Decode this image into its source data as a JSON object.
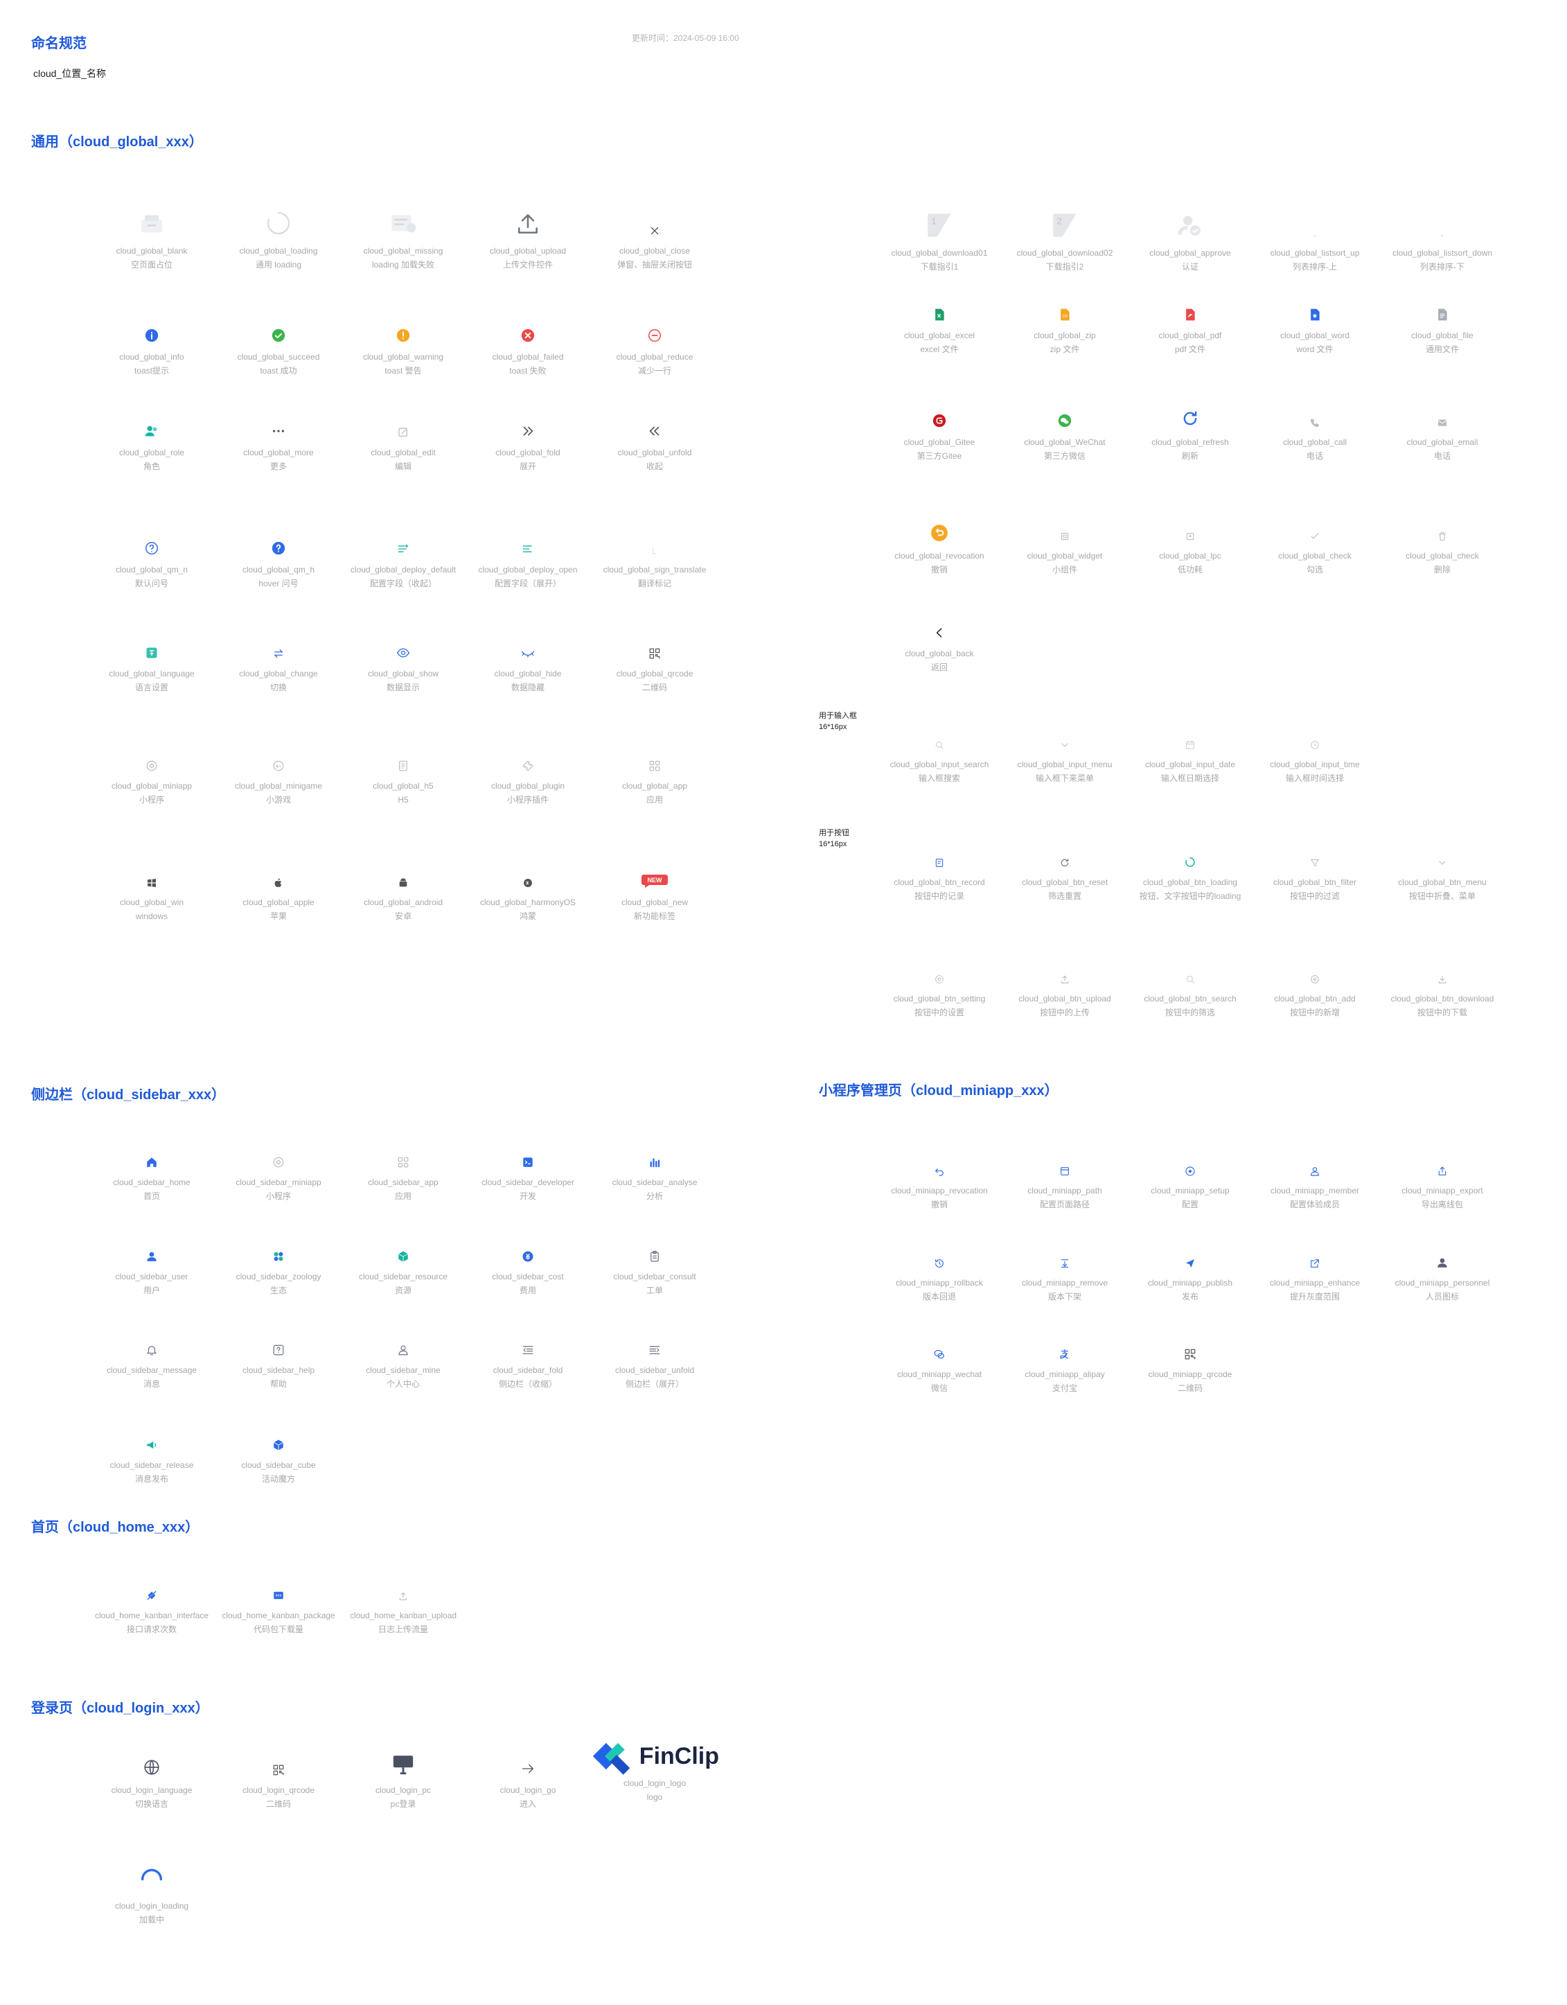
{
  "header": {
    "title": "命名规范",
    "rule": "cloud_位置_名称",
    "updated": "更新时间：2024-05-09 16:00"
  },
  "sections": {
    "global": "通用（cloud_global_xxx）",
    "sidebar": "侧边栏（cloud_sidebar_xxx）",
    "home": "首页（cloud_home_xxx）",
    "login": "登录页（cloud_login_xxx）",
    "miniapp": "小程序管理页（cloud_miniapp_xxx）"
  },
  "notes": {
    "input": [
      "用于输入框",
      "16*16px"
    ],
    "button": [
      "用于按钮",
      "16*16px"
    ]
  },
  "colors": {
    "title": "#1f5ad9",
    "blue": "#2f6be6",
    "green": "#3bb44a",
    "orange": "#f5a623",
    "red": "#e9494a",
    "teal": "#13b5a0",
    "gray": "#b8b8b8",
    "dark": "#6b7380"
  },
  "global_left": [
    {
      "name": "cloud_global_blank",
      "desc": "空页面占位",
      "icon": "blank-icon"
    },
    {
      "name": "cloud_global_loading",
      "desc": "通用 loading",
      "icon": "loading-icon"
    },
    {
      "name": "cloud_global_missing",
      "desc": "loading 加载失败",
      "icon": "missing-icon"
    },
    {
      "name": "cloud_global_upload",
      "desc": "上传文件控件",
      "icon": "upload-icon"
    },
    {
      "name": "cloud_global_close",
      "desc": "弹窗、抽屉关闭按钮",
      "icon": "close-icon"
    },
    {
      "name": "cloud_global_info",
      "desc": "toast提示",
      "icon": "info-icon"
    },
    {
      "name": "cloud_global_succeed",
      "desc": "toast 成功",
      "icon": "success-icon"
    },
    {
      "name": "cloud_global_warning",
      "desc": "toast 警告",
      "icon": "warning-icon"
    },
    {
      "name": "cloud_global_failed",
      "desc": "toast 失败",
      "icon": "failed-icon"
    },
    {
      "name": "cloud_global_reduce",
      "desc": "减少一行",
      "icon": "reduce-icon"
    },
    {
      "name": "cloud_global_role",
      "desc": "角色",
      "icon": "role-icon"
    },
    {
      "name": "cloud_global_more",
      "desc": "更多",
      "icon": "more-icon"
    },
    {
      "name": "cloud_global_edit",
      "desc": "编辑",
      "icon": "edit-icon"
    },
    {
      "name": "cloud_global_fold",
      "desc": "展开",
      "icon": "chevrons-right-icon"
    },
    {
      "name": "cloud_global_unfold",
      "desc": "收起",
      "icon": "chevrons-left-icon"
    },
    {
      "name": "cloud_global_qm_n",
      "desc": "默认问号",
      "icon": "question-outline-icon"
    },
    {
      "name": "cloud_global_qm_h",
      "desc": "hover 问号",
      "icon": "question-filled-icon"
    },
    {
      "name": "cloud_global_deploy_default",
      "desc": "配置字段（收起）",
      "icon": "deploy-default-icon"
    },
    {
      "name": "cloud_global_deploy_open",
      "desc": "配置字段（展开）",
      "icon": "deploy-open-icon"
    },
    {
      "name": "cloud_global_sign_translate",
      "desc": "翻译标记",
      "icon": "translate-sign-icon"
    },
    {
      "name": "cloud_global_language",
      "desc": "语言设置",
      "icon": "language-icon"
    },
    {
      "name": "cloud_global_change",
      "desc": "切换",
      "icon": "change-icon"
    },
    {
      "name": "cloud_global_show",
      "desc": "数据显示",
      "icon": "eye-icon"
    },
    {
      "name": "cloud_global_hide",
      "desc": "数据隐藏",
      "icon": "eye-closed-icon"
    },
    {
      "name": "cloud_global_qrcode",
      "desc": "二维码",
      "icon": "qrcode-icon"
    },
    {
      "name": "cloud_global_miniapp",
      "desc": "小程序",
      "icon": "miniapp-icon"
    },
    {
      "name": "cloud_global_minigame",
      "desc": "小游戏",
      "icon": "minigame-icon"
    },
    {
      "name": "cloud_global_h5",
      "desc": "H5",
      "icon": "h5-icon"
    },
    {
      "name": "cloud_global_plugin",
      "desc": "小程序插件",
      "icon": "plugin-icon"
    },
    {
      "name": "cloud_global_app",
      "desc": "应用",
      "icon": "app-grid-icon"
    },
    {
      "name": "cloud_global_win",
      "desc": "windows",
      "icon": "windows-icon"
    },
    {
      "name": "cloud_global_apple",
      "desc": "苹果",
      "icon": "apple-icon"
    },
    {
      "name": "cloud_global_android",
      "desc": "安卓",
      "icon": "android-icon"
    },
    {
      "name": "cloud_global_harmonyOS",
      "desc": "鸿蒙",
      "icon": "harmony-icon"
    },
    {
      "name": "cloud_global_new",
      "desc": "新功能标签",
      "icon": "new-badge-icon"
    }
  ],
  "new_badge": "NEW",
  "global_right": [
    {
      "name": "cloud_global_download01",
      "desc": "下载指引1",
      "icon": "download-guide1-icon"
    },
    {
      "name": "cloud_global_download02",
      "desc": "下载指引2",
      "icon": "download-guide2-icon"
    },
    {
      "name": "cloud_global_approve",
      "desc": "认证",
      "icon": "approve-icon"
    },
    {
      "name": "cloud_global_listsort_up",
      "desc": "列表排序-上",
      "icon": "sort-up-icon"
    },
    {
      "name": "cloud_global_listsort_down",
      "desc": "列表排序-下",
      "icon": "sort-down-icon"
    },
    {
      "name": "cloud_global_excel",
      "desc": "excel 文件",
      "icon": "excel-icon"
    },
    {
      "name": "cloud_global_zip",
      "desc": "zip 文件",
      "icon": "zip-icon"
    },
    {
      "name": "cloud_global_pdf",
      "desc": "pdf 文件",
      "icon": "pdf-icon"
    },
    {
      "name": "cloud_global_word",
      "desc": "word 文件",
      "icon": "word-icon"
    },
    {
      "name": "cloud_global_file",
      "desc": "通用文件",
      "icon": "file-icon"
    },
    {
      "name": "cloud_global_Gitee",
      "desc": "第三方Gitee",
      "icon": "gitee-icon"
    },
    {
      "name": "cloud_global_WeChat",
      "desc": "第三方微信",
      "icon": "wechat-icon"
    },
    {
      "name": "cloud_global_refresh",
      "desc": "刷新",
      "icon": "refresh-icon"
    },
    {
      "name": "cloud_global_call",
      "desc": "电话",
      "icon": "phone-icon"
    },
    {
      "name": "cloud_global_email",
      "desc": "电话",
      "icon": "email-icon"
    },
    {
      "name": "cloud_global_revocation",
      "desc": "撤销",
      "icon": "revocation-icon"
    },
    {
      "name": "cloud_global_widget",
      "desc": "小组件",
      "icon": "widget-icon"
    },
    {
      "name": "cloud_global_lpc",
      "desc": "低功耗",
      "icon": "lpc-icon"
    },
    {
      "name": "cloud_global_check",
      "desc": "勾选",
      "icon": "check-icon"
    },
    {
      "name": "cloud_global_check",
      "desc": "删除",
      "icon": "trash-icon"
    },
    {
      "name": "cloud_global_back",
      "desc": "返回",
      "icon": "back-icon"
    }
  ],
  "input_icons": [
    {
      "name": "cloud_global_input_search",
      "desc": "输入框搜索",
      "icon": "search-icon"
    },
    {
      "name": "cloud_global_input_menu",
      "desc": "输入框下来菜单",
      "icon": "chevron-down-icon"
    },
    {
      "name": "cloud_global_input_date",
      "desc": "输入框日期选择",
      "icon": "calendar-icon"
    },
    {
      "name": "cloud_global_input_time",
      "desc": "输入框时间选择",
      "icon": "clock-icon"
    }
  ],
  "button_icons": [
    {
      "name": "cloud_global_btn_record",
      "desc": "按钮中的记录",
      "icon": "record-icon"
    },
    {
      "name": "cloud_global_btn_reset",
      "desc": "筛选重置",
      "icon": "reset-icon"
    },
    {
      "name": "cloud_global_btn_loading",
      "desc": "按钮、文字按钮中的loading",
      "icon": "btn-loading-icon"
    },
    {
      "name": "cloud_global_btn_filter",
      "desc": "按钮中的过滤",
      "icon": "filter-icon"
    },
    {
      "name": "cloud_global_btn_menu",
      "desc": "按钮中折叠、菜单",
      "icon": "chevron-down-icon"
    },
    {
      "name": "cloud_global_btn_setting",
      "desc": "按钮中的设置",
      "icon": "gear-icon"
    },
    {
      "name": "cloud_global_btn_upload",
      "desc": "按钮中的上传",
      "icon": "upload-small-icon"
    },
    {
      "name": "cloud_global_btn_search",
      "desc": "按钮中的筛选",
      "icon": "search-icon"
    },
    {
      "name": "cloud_global_btn_add",
      "desc": "按钮中的新增",
      "icon": "add-circle-icon"
    },
    {
      "name": "cloud_global_btn_download",
      "desc": "按钮中的下载",
      "icon": "download-icon"
    }
  ],
  "sidebar_icons": [
    {
      "name": "cloud_sidebar_home",
      "desc": "首页",
      "icon": "home-icon"
    },
    {
      "name": "cloud_sidebar_miniapp",
      "desc": "小程序",
      "icon": "miniapp-icon"
    },
    {
      "name": "cloud_sidebar_app",
      "desc": "应用",
      "icon": "app-grid-icon"
    },
    {
      "name": "cloud_sidebar_developer",
      "desc": "开发",
      "icon": "developer-icon"
    },
    {
      "name": "cloud_sidebar_analyse",
      "desc": "分析",
      "icon": "analyse-icon"
    },
    {
      "name": "cloud_sidebar_user",
      "desc": "用户",
      "icon": "user-icon"
    },
    {
      "name": "cloud_sidebar_zoology",
      "desc": "生态",
      "icon": "zoology-icon"
    },
    {
      "name": "cloud_sidebar_resource",
      "desc": "资源",
      "icon": "resource-icon"
    },
    {
      "name": "cloud_sidebar_cost",
      "desc": "费用",
      "icon": "cost-icon"
    },
    {
      "name": "cloud_sidebar_consult",
      "desc": "工单",
      "icon": "consult-icon"
    },
    {
      "name": "cloud_sidebar_message",
      "desc": "消息",
      "icon": "bell-icon"
    },
    {
      "name": "cloud_sidebar_help",
      "desc": "帮助",
      "icon": "help-icon"
    },
    {
      "name": "cloud_sidebar_mine",
      "desc": "个人中心",
      "icon": "user-outline-icon"
    },
    {
      "name": "cloud_sidebar_fold",
      "desc": "侧边栏（收缩）",
      "icon": "sidebar-fold-icon"
    },
    {
      "name": "cloud_sidebar_unfold",
      "desc": "侧边栏（展开）",
      "icon": "sidebar-unfold-icon"
    },
    {
      "name": "cloud_sidebar_release",
      "desc": "消息发布",
      "icon": "megaphone-icon"
    },
    {
      "name": "cloud_sidebar_cube",
      "desc": "活动魔方",
      "icon": "cube-icon"
    }
  ],
  "home_icons": [
    {
      "name": "cloud_home_kanban_interface",
      "desc": "接口请求次数",
      "icon": "interface-icon"
    },
    {
      "name": "cloud_home_kanban_package",
      "desc": "代码包下载量",
      "icon": "package-icon"
    },
    {
      "name": "cloud_home_kanban_upload",
      "desc": "日志上传流量",
      "icon": "upload-small-icon"
    }
  ],
  "login_icons": [
    {
      "name": "cloud_login_language",
      "desc": "切换语言",
      "icon": "globe-icon"
    },
    {
      "name": "cloud_login_qrcode",
      "desc": "二维码",
      "icon": "qrcode-icon"
    },
    {
      "name": "cloud_login_pc",
      "desc": "pc登录",
      "icon": "pc-icon"
    },
    {
      "name": "cloud_login_go",
      "desc": "进入",
      "icon": "arrow-right-icon"
    },
    {
      "name": "cloud_login_logo",
      "desc": "logo",
      "icon": "finclip-logo-icon"
    },
    {
      "name": "cloud_login_loading",
      "desc": "加载中",
      "icon": "login-loading-icon"
    }
  ],
  "logo_text": "FinClip",
  "miniapp_icons": [
    {
      "name": "cloud_miniapp_revocation",
      "desc": "撤销",
      "icon": "undo-icon"
    },
    {
      "name": "cloud_miniapp_path",
      "desc": "配置页面路径",
      "icon": "path-icon"
    },
    {
      "name": "cloud_miniapp_setup",
      "desc": "配置",
      "icon": "setup-icon"
    },
    {
      "name": "cloud_miniapp_member",
      "desc": "配置体验成员",
      "icon": "member-icon"
    },
    {
      "name": "cloud_miniapp_export",
      "desc": "导出离线包",
      "icon": "export-icon"
    },
    {
      "name": "cloud_miniapp_rollback",
      "desc": "版本回退",
      "icon": "rollback-icon"
    },
    {
      "name": "cloud_miniapp_remove",
      "desc": "版本下架",
      "icon": "remove-icon"
    },
    {
      "name": "cloud_miniapp_publish",
      "desc": "发布",
      "icon": "publish-icon"
    },
    {
      "name": "cloud_miniapp_enhance",
      "desc": "提升灰度范围",
      "icon": "enhance-icon"
    },
    {
      "name": "cloud_miniapp_personnel",
      "desc": "人员图标",
      "icon": "personnel-icon"
    },
    {
      "name": "cloud_miniapp_wechat",
      "desc": "微信",
      "icon": "wechat-outline-icon"
    },
    {
      "name": "cloud_miniapp_alipay",
      "desc": "支付宝",
      "icon": "alipay-icon"
    },
    {
      "name": "cloud_miniapp_qrcode",
      "desc": "二维码",
      "icon": "qrcode-icon"
    }
  ]
}
